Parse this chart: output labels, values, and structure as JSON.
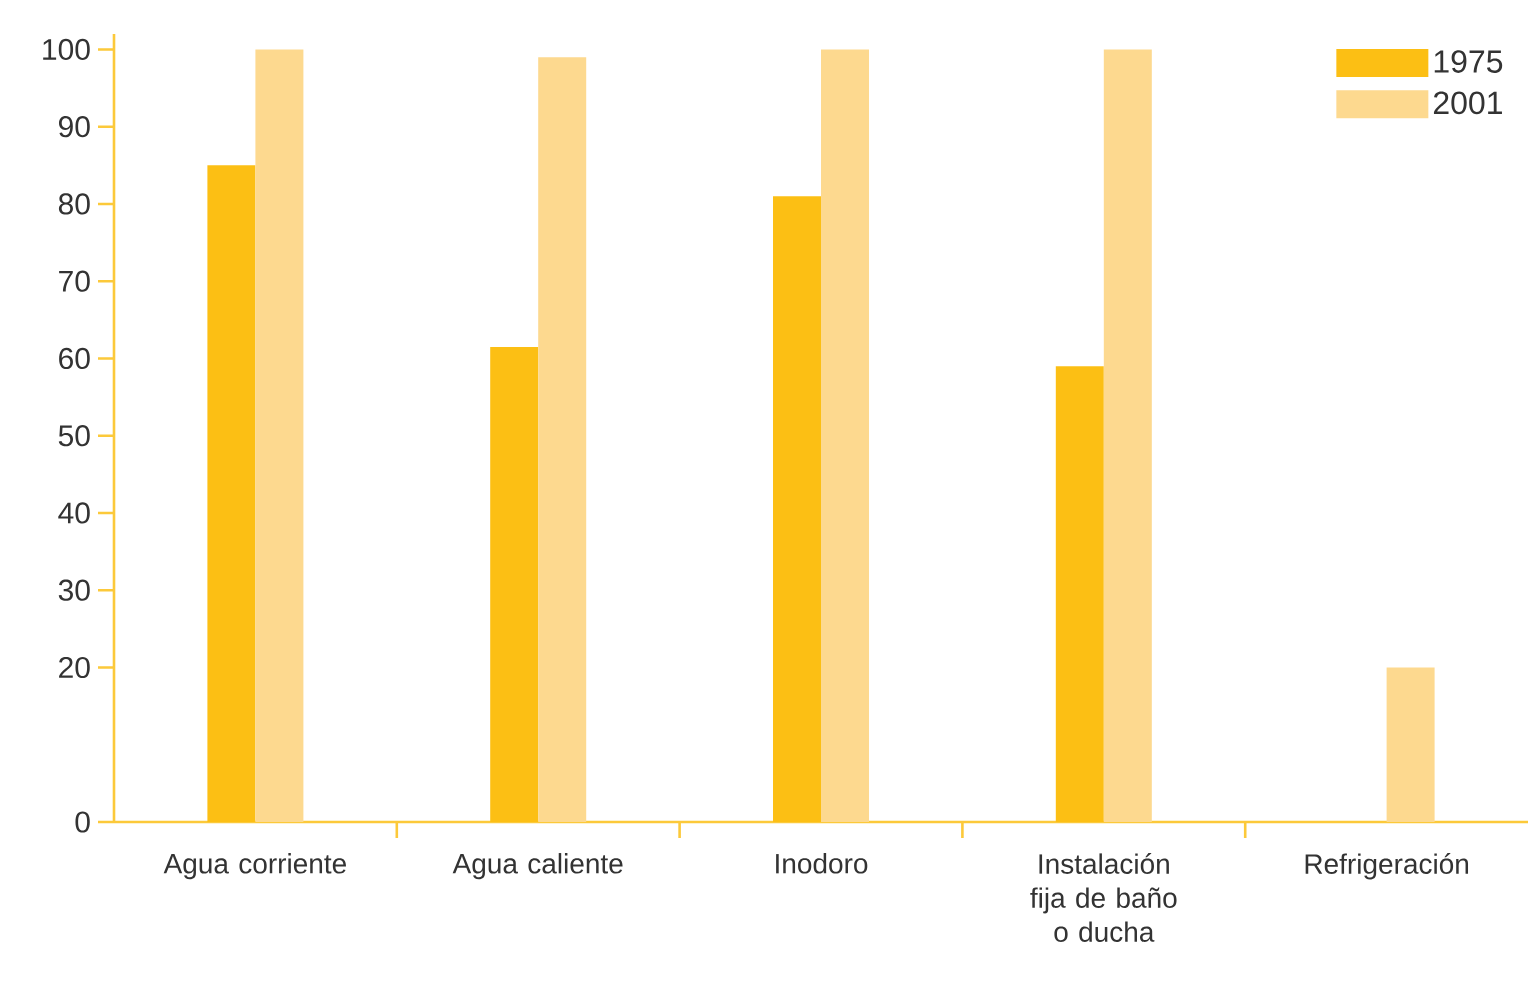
{
  "chart_data": {
    "type": "bar",
    "categories": [
      "Agua corriente",
      "Agua caliente",
      "Inodoro",
      "Instalación fija de baño o ducha",
      "Refrigeración"
    ],
    "series": [
      {
        "name": "1975",
        "color": "#fcbf14",
        "values": [
          85,
          61.5,
          81,
          59,
          0
        ]
      },
      {
        "name": "2001",
        "color": "#fdd98f",
        "values": [
          100,
          99,
          100,
          100,
          20
        ]
      }
    ],
    "ylim": [
      0,
      102
    ],
    "yticks": [
      0,
      20,
      30,
      40,
      50,
      60,
      70,
      80,
      90,
      100
    ],
    "grid": false,
    "legend": "top right"
  }
}
